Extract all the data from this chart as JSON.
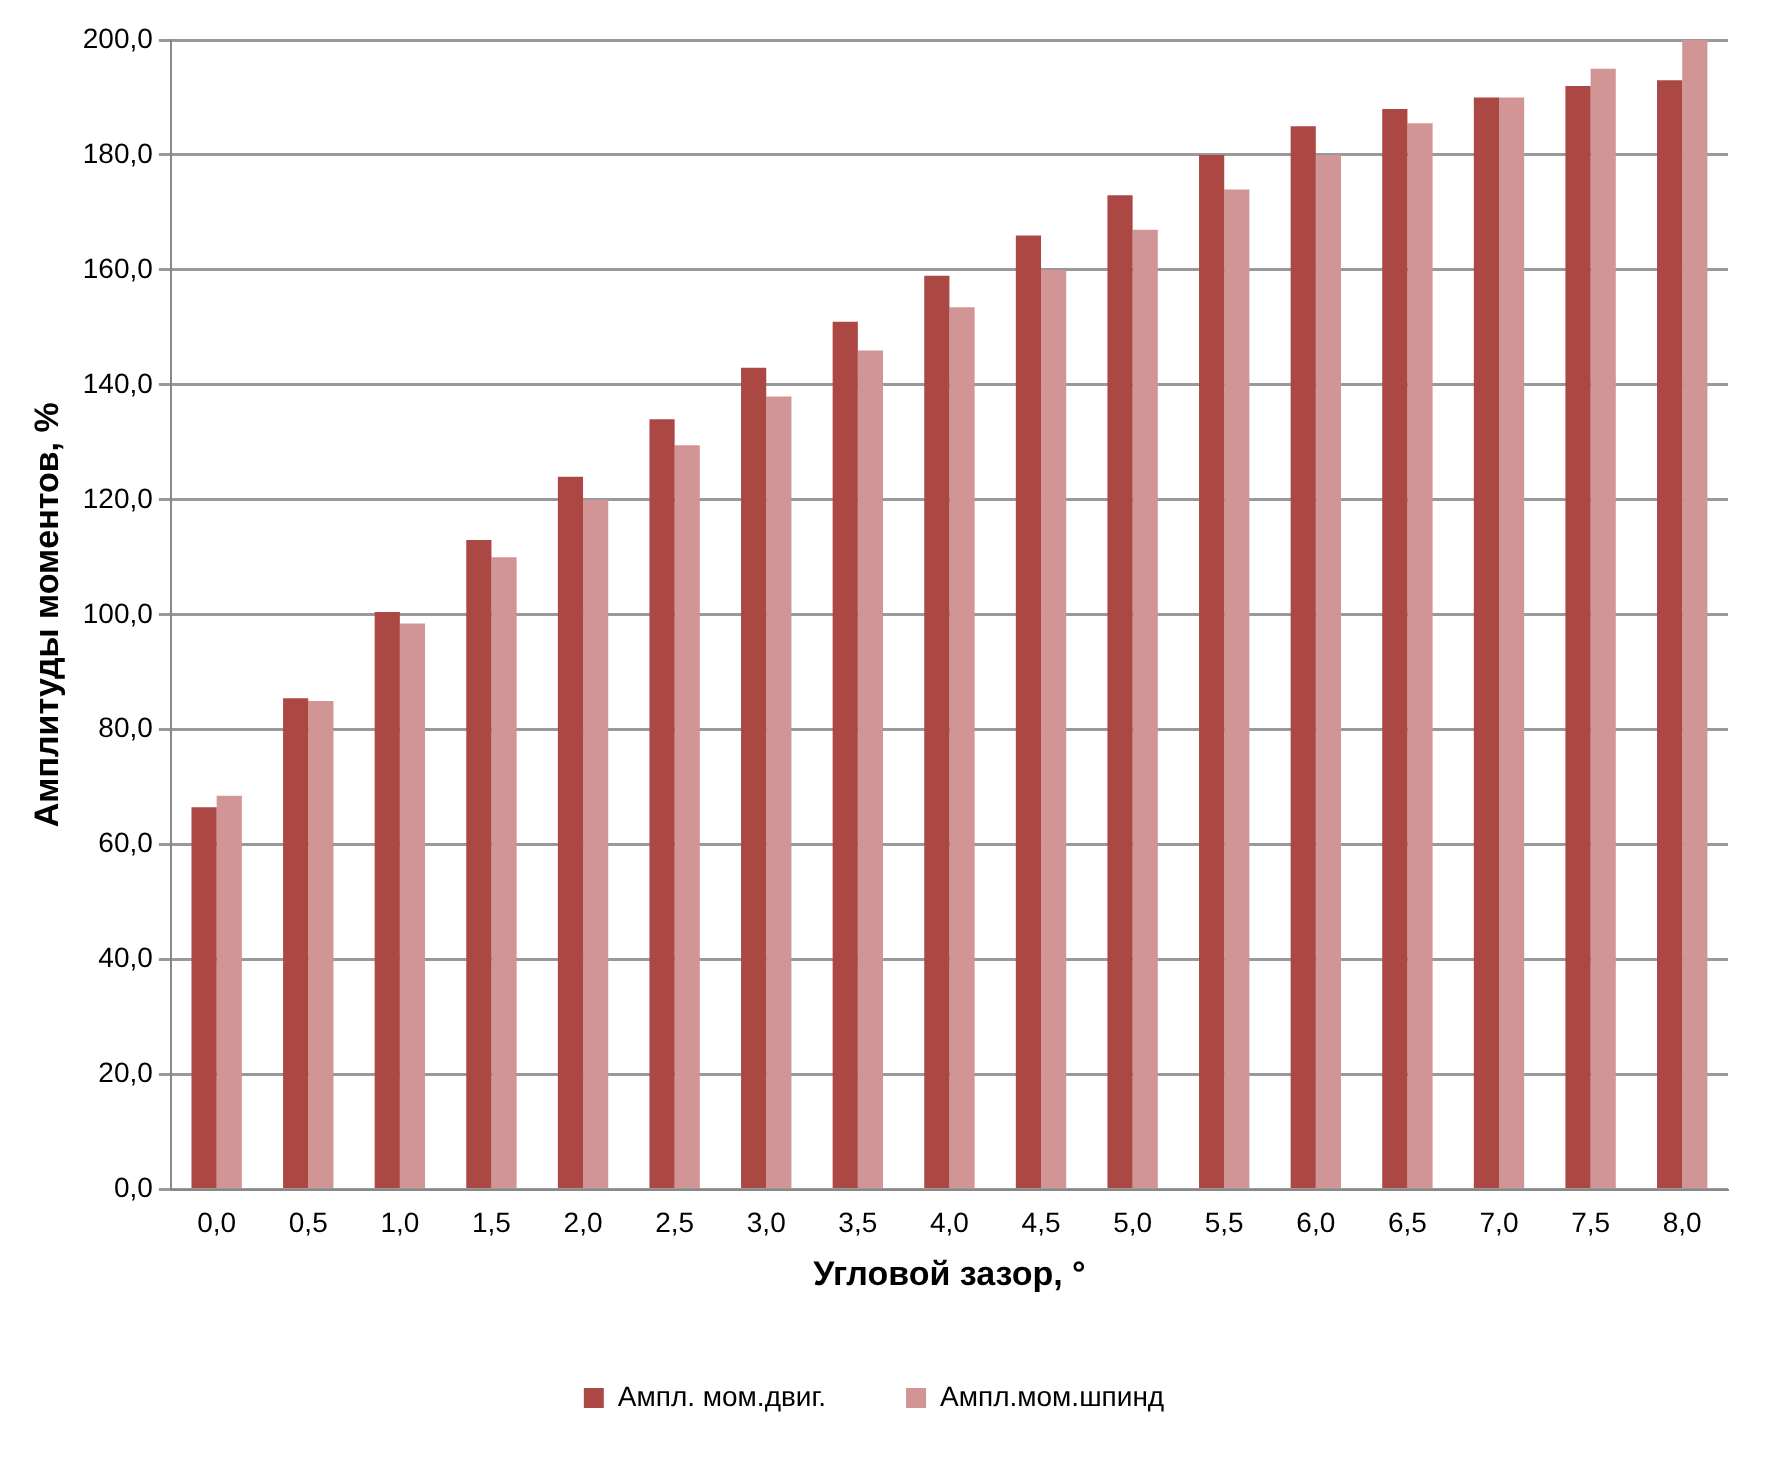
{
  "chart_data": {
    "type": "bar",
    "xlabel": "Угловой зазор, °",
    "ylabel": "Амплитуды моментов, %",
    "categories": [
      "0,0",
      "0,5",
      "1,0",
      "1,5",
      "2,0",
      "2,5",
      "3,0",
      "3,5",
      "4,0",
      "4,5",
      "5,0",
      "5,5",
      "6,0",
      "6,5",
      "7,0",
      "7,5",
      "8,0"
    ],
    "series": [
      {
        "name": "Ампл. мом.двиг.",
        "color": "#ab4844",
        "values": [
          66.5,
          85.5,
          100.5,
          113,
          124,
          134,
          143,
          151,
          159,
          166,
          173,
          180,
          185,
          188,
          190,
          192,
          193
        ]
      },
      {
        "name": "Ампл.мом.шпинд",
        "color": "#d29595",
        "values": [
          68.5,
          85,
          98.5,
          110,
          120,
          129.5,
          138,
          146,
          153.5,
          160,
          167,
          174,
          180,
          185.5,
          190,
          195,
          200
        ]
      }
    ],
    "ylim": [
      0,
      200
    ],
    "yticks": [
      {
        "value": 0,
        "label": "0,0"
      },
      {
        "value": 20,
        "label": "20,0"
      },
      {
        "value": 40,
        "label": "40,0"
      },
      {
        "value": 60,
        "label": "60,0"
      },
      {
        "value": 80,
        "label": "80,0"
      },
      {
        "value": 100,
        "label": "100,0"
      },
      {
        "value": 120,
        "label": "120,0"
      },
      {
        "value": 140,
        "label": "140,0"
      },
      {
        "value": 160,
        "label": "160,0"
      },
      {
        "value": 180,
        "label": "180,0"
      },
      {
        "value": 200,
        "label": "200,0"
      }
    ],
    "grid": "y",
    "legend": "bottom"
  }
}
